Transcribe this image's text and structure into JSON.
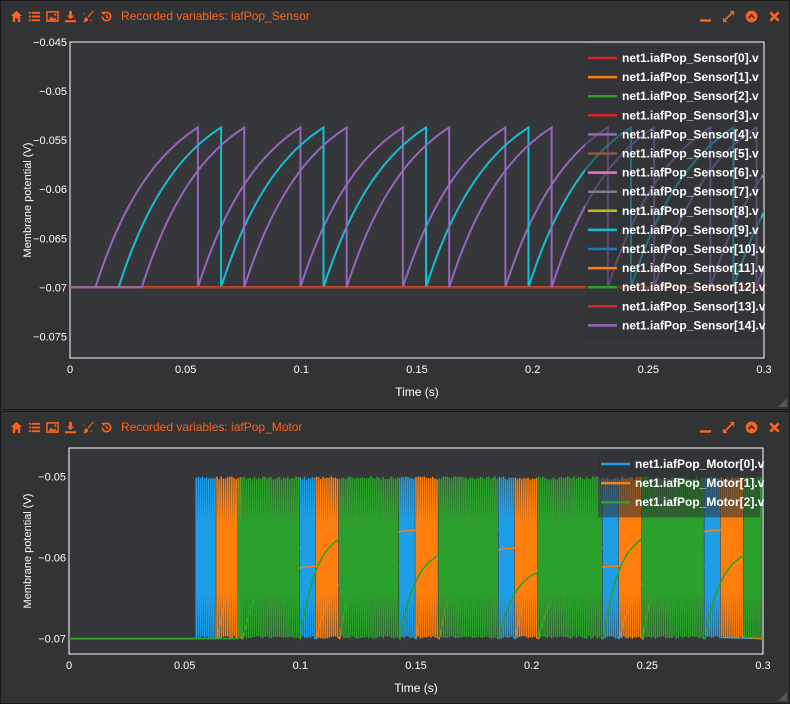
{
  "theme": {
    "accent": "#fc6320",
    "panel_bg": "#323335",
    "plot_bg": "#36373a",
    "axis_text": "#ffffff"
  },
  "toolbar_icons": [
    "home-icon",
    "list-icon",
    "image-icon",
    "download-icon",
    "brush-icon",
    "history-icon"
  ],
  "window_controls": [
    "minimize-icon",
    "expand-icon",
    "collapse-icon",
    "close-icon"
  ],
  "panels": [
    {
      "title": "Recorded variables: iafPop_Sensor",
      "chart_data": {
        "type": "line",
        "xlabel": "Time (s)",
        "ylabel": "Membrane potential (V)",
        "xlim": [
          0,
          0.3
        ],
        "ylim": [
          -0.0772,
          -0.045
        ],
        "xticks": [
          0,
          0.05,
          0.1,
          0.15,
          0.2,
          0.25,
          0.3
        ],
        "xtick_labels": [
          "0",
          "0.05",
          "0.1",
          "0.15",
          "0.2",
          "0.25",
          "0.3"
        ],
        "yticks": [
          -0.045,
          -0.05,
          -0.055,
          -0.06,
          -0.065,
          -0.07,
          -0.075
        ],
        "ytick_labels": [
          "−0.045",
          "−0.05",
          "−0.055",
          "−0.06",
          "−0.065",
          "−0.07",
          "−0.075"
        ],
        "grid": false,
        "legend_position": "top-right",
        "series": [
          {
            "name": "net1.iafPop_Sensor[0].v",
            "color": "#d62728",
            "onset": null,
            "tau": null
          },
          {
            "name": "net1.iafPop_Sensor[1].v",
            "color": "#ff7f0e",
            "onset": null,
            "tau": null
          },
          {
            "name": "net1.iafPop_Sensor[2].v",
            "color": "#2ca02c",
            "onset": null,
            "tau": null
          },
          {
            "name": "net1.iafPop_Sensor[3].v",
            "color": "#d62728",
            "onset": null,
            "tau": null
          },
          {
            "name": "net1.iafPop_Sensor[4].v",
            "color": "#9467bd",
            "onset": 0.011,
            "tau": 0.028
          },
          {
            "name": "net1.iafPop_Sensor[5].v",
            "color": "#8c564b",
            "onset": null,
            "tau": null
          },
          {
            "name": "net1.iafPop_Sensor[6].v",
            "color": "#e377c2",
            "onset": null,
            "tau": null
          },
          {
            "name": "net1.iafPop_Sensor[7].v",
            "color": "#7f7f7f",
            "onset": null,
            "tau": null
          },
          {
            "name": "net1.iafPop_Sensor[8].v",
            "color": "#bcbd22",
            "onset": null,
            "tau": null
          },
          {
            "name": "net1.iafPop_Sensor[9].v",
            "color": "#17becf",
            "onset": 0.021,
            "tau": 0.028
          },
          {
            "name": "net1.iafPop_Sensor[10].v",
            "color": "#1f77b4",
            "onset": null,
            "tau": null
          },
          {
            "name": "net1.iafPop_Sensor[11].v",
            "color": "#ff7f0e",
            "onset": null,
            "tau": null
          },
          {
            "name": "net1.iafPop_Sensor[12].v",
            "color": "#2ca02c",
            "onset": null,
            "tau": null
          },
          {
            "name": "net1.iafPop_Sensor[13].v",
            "color": "#d62728",
            "onset": null,
            "tau": null
          },
          {
            "name": "net1.iafPop_Sensor[14].v",
            "color": "#9467bd",
            "onset": 0.031,
            "tau": 0.028
          }
        ],
        "rest": -0.07,
        "threshold": -0.05,
        "v_inf": -0.0495,
        "period": 0.0443
      }
    },
    {
      "title": "Recorded variables: iafPop_Motor",
      "chart_data": {
        "type": "line",
        "xlabel": "Time (s)",
        "ylabel": "Membrane potential (V)",
        "xlim": [
          0,
          0.3
        ],
        "ylim": [
          -0.0719,
          -0.0465
        ],
        "xticks": [
          0,
          0.05,
          0.1,
          0.15,
          0.2,
          0.25,
          0.3
        ],
        "xtick_labels": [
          "0",
          "0.05",
          "0.1",
          "0.15",
          "0.2",
          "0.25",
          "0.3"
        ],
        "yticks": [
          -0.05,
          -0.06,
          -0.07
        ],
        "ytick_labels": [
          "−0.05",
          "−0.06",
          "−0.07"
        ],
        "grid": false,
        "legend_position": "top-right",
        "series": [
          {
            "name": "net1.iafPop_Motor[0].v",
            "color": "#1f9ee8",
            "bursts": [
              [
                0.055,
                0.064
              ],
              [
                0.1,
                0.107
              ],
              [
                0.143,
                0.15
              ],
              [
                0.186,
                0.193
              ],
              [
                0.231,
                0.238
              ],
              [
                0.275,
                0.282
              ]
            ]
          },
          {
            "name": "net1.iafPop_Motor[1].v",
            "color": "#ff7f0e",
            "bursts": [
              [
                0.064,
                0.075
              ],
              [
                0.107,
                0.117
              ],
              [
                0.15,
                0.16
              ],
              [
                0.193,
                0.203
              ],
              [
                0.238,
                0.248
              ],
              [
                0.282,
                0.292
              ]
            ]
          },
          {
            "name": "net1.iafPop_Motor[2].v",
            "color": "#2ca02c",
            "bursts": [
              [
                0.073,
                0.1
              ],
              [
                0.117,
                0.143
              ],
              [
                0.16,
                0.186
              ],
              [
                0.203,
                0.231
              ],
              [
                0.248,
                0.275
              ],
              [
                0.292,
                0.3
              ]
            ]
          }
        ],
        "rest": -0.07,
        "threshold": -0.05
      }
    }
  ]
}
